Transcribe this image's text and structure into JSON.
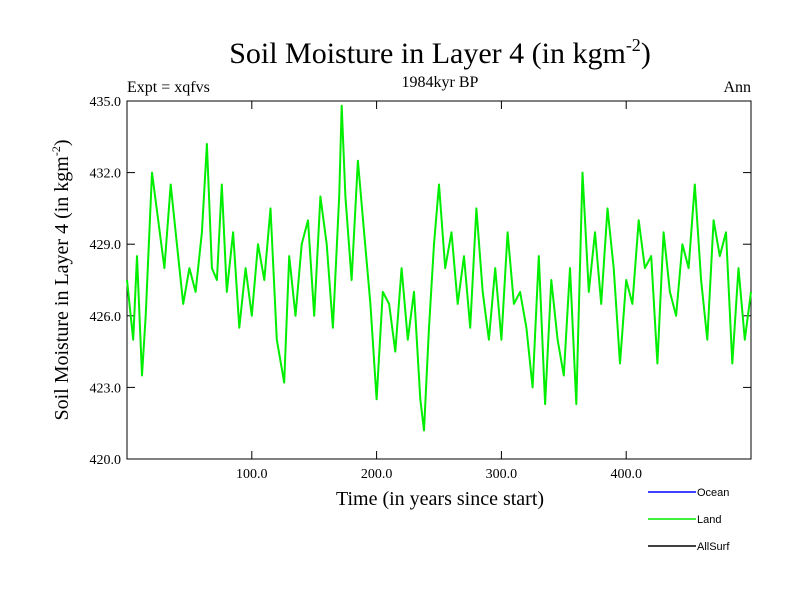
{
  "chart_data": {
    "type": "line",
    "title": "Soil Moisture in Layer 4 (in kgm",
    "title_sup": "-2",
    "title_close": ")",
    "subtitle": "1984kyr BP",
    "left_label": "Expt = xqfvs",
    "right_label": "Ann",
    "xlabel": "Time (in years since start)",
    "ylabel": "Soil Moisture in Layer 4 (in kgm",
    "ylabel_sup": "-2",
    "ylabel_close": ")",
    "xlim": [
      0,
      500
    ],
    "ylim": [
      420.0,
      435.0
    ],
    "x_ticks": [
      100,
      200,
      300,
      400
    ],
    "x_tick_labels": [
      "100.0",
      "200.0",
      "300.0",
      "400.0"
    ],
    "y_ticks": [
      420,
      423,
      426,
      429,
      432,
      435
    ],
    "y_tick_labels": [
      "420.0",
      "423.0",
      "426.0",
      "429.0",
      "432.0",
      "435.0"
    ],
    "legend": [
      {
        "name": "Ocean",
        "color": "#0000ff"
      },
      {
        "name": "Land",
        "color": "#00ee00"
      },
      {
        "name": "AllSurf",
        "color": "#000000"
      }
    ],
    "series": [
      {
        "name": "Land",
        "color": "#00ee00",
        "x": [
          0,
          5,
          8,
          12,
          15,
          20,
          25,
          30,
          35,
          40,
          45,
          50,
          55,
          60,
          64,
          68,
          72,
          76,
          80,
          85,
          90,
          95,
          100,
          105,
          110,
          115,
          120,
          126,
          130,
          135,
          140,
          145,
          150,
          155,
          160,
          165,
          170,
          172,
          175,
          180,
          185,
          190,
          195,
          200,
          205,
          210,
          215,
          220,
          225,
          230,
          235,
          238,
          242,
          246,
          250,
          255,
          260,
          265,
          270,
          275,
          280,
          285,
          290,
          295,
          300,
          305,
          310,
          315,
          320,
          325,
          330,
          335,
          340,
          345,
          350,
          355,
          360,
          365,
          370,
          375,
          380,
          385,
          390,
          395,
          400,
          405,
          410,
          415,
          420,
          425,
          430,
          435,
          440,
          445,
          450,
          455,
          460,
          465,
          470,
          475,
          480,
          485,
          490,
          495,
          500
        ],
        "values": [
          427.5,
          425.0,
          428.5,
          423.5,
          426.0,
          432.0,
          430.0,
          428.0,
          431.5,
          429.0,
          426.5,
          428.0,
          427.0,
          429.5,
          433.2,
          428.0,
          427.5,
          431.5,
          427.0,
          429.5,
          425.5,
          428.0,
          426.0,
          429.0,
          427.5,
          430.5,
          425.0,
          423.2,
          428.5,
          426.0,
          429.0,
          430.0,
          426.0,
          431.0,
          429.0,
          425.5,
          431.0,
          434.8,
          431.0,
          427.5,
          432.5,
          429.5,
          426.5,
          422.5,
          427.0,
          426.5,
          424.5,
          428.0,
          425.0,
          427.0,
          422.5,
          421.2,
          425.5,
          429.0,
          431.5,
          428.0,
          429.5,
          426.5,
          428.5,
          425.5,
          430.5,
          427.0,
          425.0,
          428.0,
          425.0,
          429.5,
          426.5,
          427.0,
          425.5,
          423.0,
          428.5,
          422.3,
          427.5,
          425.0,
          423.5,
          428.0,
          422.3,
          432.0,
          427.0,
          429.5,
          426.5,
          430.5,
          428.0,
          424.0,
          427.5,
          426.5,
          430.0,
          428.0,
          428.5,
          424.0,
          429.5,
          427.0,
          426.0,
          429.0,
          428.0,
          431.5,
          427.5,
          425.0,
          430.0,
          428.5,
          429.5,
          424.0,
          428.0,
          425.0,
          427.0
        ]
      }
    ]
  }
}
